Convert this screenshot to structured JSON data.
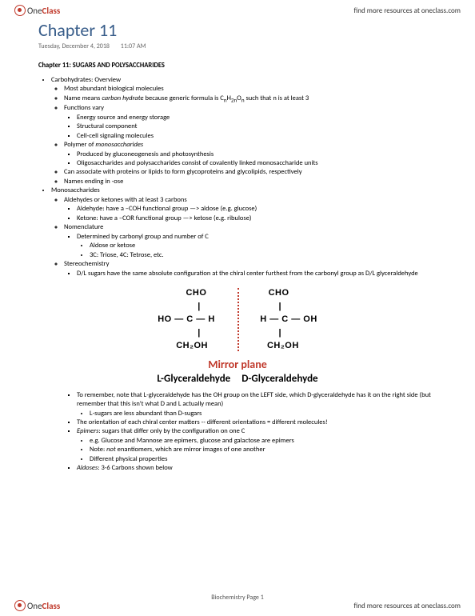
{
  "brand": {
    "one": "One",
    "class": "Class",
    "tagline": "find more resources at oneclass.com"
  },
  "title": "Chapter 11",
  "date": "Tuesday, December 4, 2018",
  "time": "11:07 AM",
  "section": "Chapter 11: SUGARS AND POLYSACCHARIDES",
  "b1": {
    "h": "Carbohydrates: Overview",
    "i1": "Most abundant biological molecules",
    "i2a": "Name means ",
    "i2b": "carbon hydrate",
    "i2c": " because generic formula is C",
    "i2n": "n",
    "i2d": "H",
    "i2e": "2n",
    "i2f": "O",
    "i2g": "n",
    "i2h": " such that n is at least 3",
    "i3": "Functions vary",
    "i3a": "Energy source and energy storage",
    "i3b": "Structural component",
    "i3c": "Cell-cell signaling molecules",
    "i4a": "Polymer of ",
    "i4b": "monosaccharides",
    "i4c": "Produced by gluconeogenesis and photosynthesis",
    "i4d": "Oligosaccharides and polysaccharides consist of covalently linked monosaccharide units",
    "i5": "Can associate with proteins or lipids to form glycoproteins and glycolipids, respectively",
    "i6": "Names ending in -ose"
  },
  "b2": {
    "h": "Monosaccharides",
    "i1": "Aldehydes or ketones with at least 3 carbons",
    "i1a": "Aldehyde: have a –COH functional group —> aldose (e.g. glucose)",
    "i1b": "Ketone: have a –COR functional group —> ketose (e.g. ribulose)",
    "i2": "Nomenclature",
    "i2a": "Determined by carbonyl group and number of C",
    "i2a1": "Aldose or ketose",
    "i2a2": "3C: Triose, 4C: Tetrose, etc.",
    "i3": "Stereochemistry",
    "i3a": "D/L sugars have the same absolute configuration at the chiral center furthest from the carbonyl group as D/L glyceraldehyde"
  },
  "fig": {
    "l": {
      "r1": "CHO",
      "r2": "HO — C — H",
      "r3": "CH₂OH",
      "name": "L-Glyceraldehyde"
    },
    "r": {
      "r1": "CHO",
      "r2": "H — C — OH",
      "r3": "CH₂OH",
      "name": "D-Glyceraldehyde"
    },
    "mirror": "Mirror plane",
    "divider_color": "#c0392b"
  },
  "b3": {
    "i1": "To remember, note that L-glyceraldehyde has the OH group on the LEFT side, which D-glyceraldehyde has it on the right side (but remember that this isn't what D and L actually mean)",
    "i1a": "L-sugars are less abundant than D-sugars",
    "i2": "The orientation of each chiral center matters -- different orientations = different molecules!",
    "i3a": "Epimers",
    "i3b": ": sugars that differ only by the configuration on one C",
    "i3c": "e.g. Glucose and Mannose are epimers, glucose and galactose are epimers",
    "i3d1": "Note: ",
    "i3d2": "not",
    "i3d3": " enantiomers, which are mirror images of one another",
    "i3e": "Different physical properties",
    "i4a": "Aldoses",
    "i4b": ": 3-6 Carbons shown below"
  },
  "pagenum": "Biochemistry Page 1"
}
